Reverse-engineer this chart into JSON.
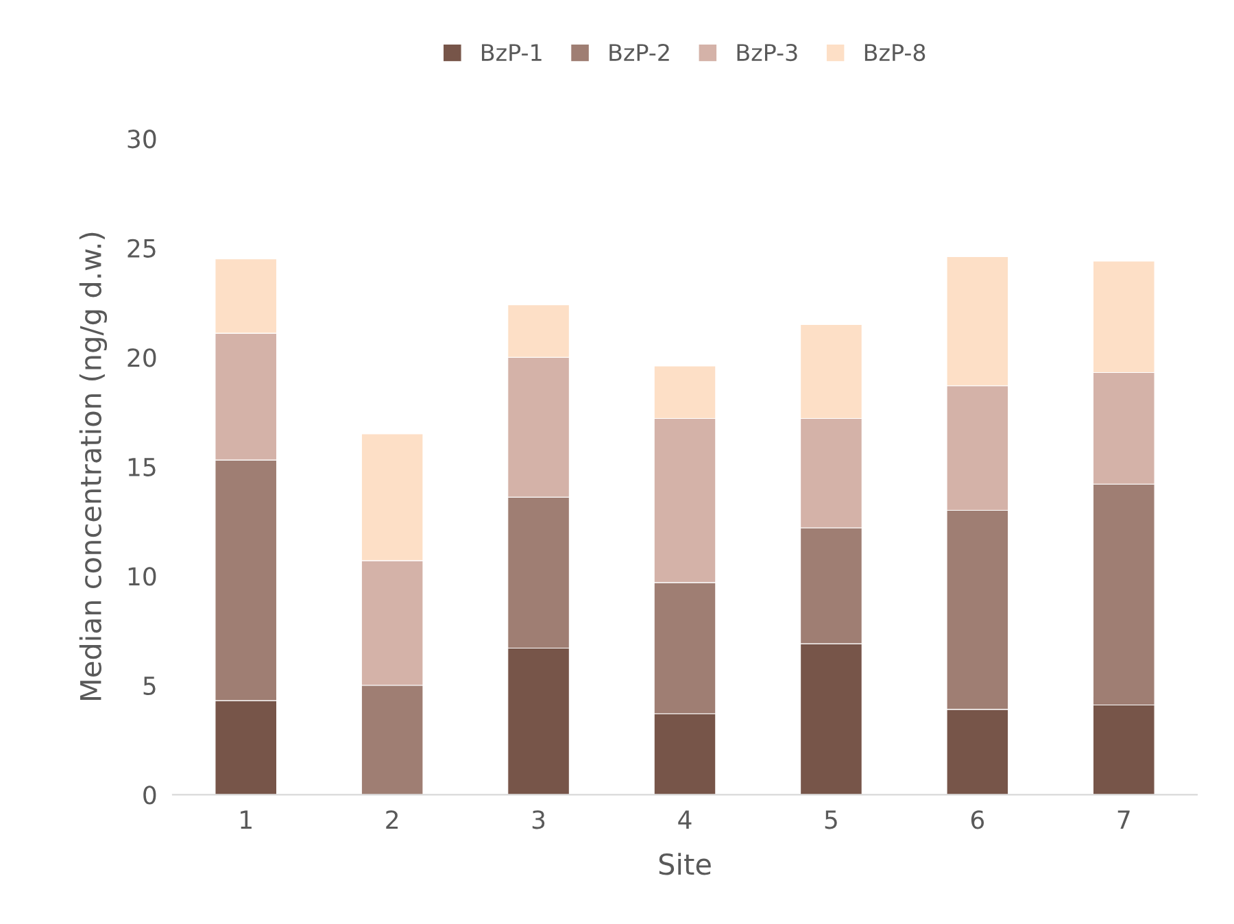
{
  "chart_data": {
    "type": "bar",
    "stacked": true,
    "xlabel": "Site",
    "ylabel": "Median concentration (ng/g d.w.)",
    "categories": [
      "1",
      "2",
      "3",
      "4",
      "5",
      "6",
      "7"
    ],
    "series": [
      {
        "name": "BzP-1",
        "color": "#775549",
        "values": [
          4.3,
          0,
          6.7,
          3.7,
          6.9,
          3.9,
          4.1
        ]
      },
      {
        "name": "BzP-2",
        "color": "#9f7e73",
        "values": [
          11.0,
          5.0,
          6.9,
          6.0,
          5.3,
          9.1,
          10.1
        ]
      },
      {
        "name": "BzP-3",
        "color": "#d4b2a8",
        "values": [
          5.8,
          5.7,
          6.4,
          7.5,
          5.0,
          5.7,
          5.1
        ]
      },
      {
        "name": "BzP-8",
        "color": "#fddfc6",
        "values": [
          3.4,
          5.8,
          2.4,
          2.4,
          4.3,
          5.9,
          5.1
        ]
      }
    ],
    "ylim": [
      0,
      30
    ],
    "yticks": [
      0,
      5,
      10,
      15,
      20,
      25,
      30
    ],
    "grid": false,
    "legend": "top"
  }
}
